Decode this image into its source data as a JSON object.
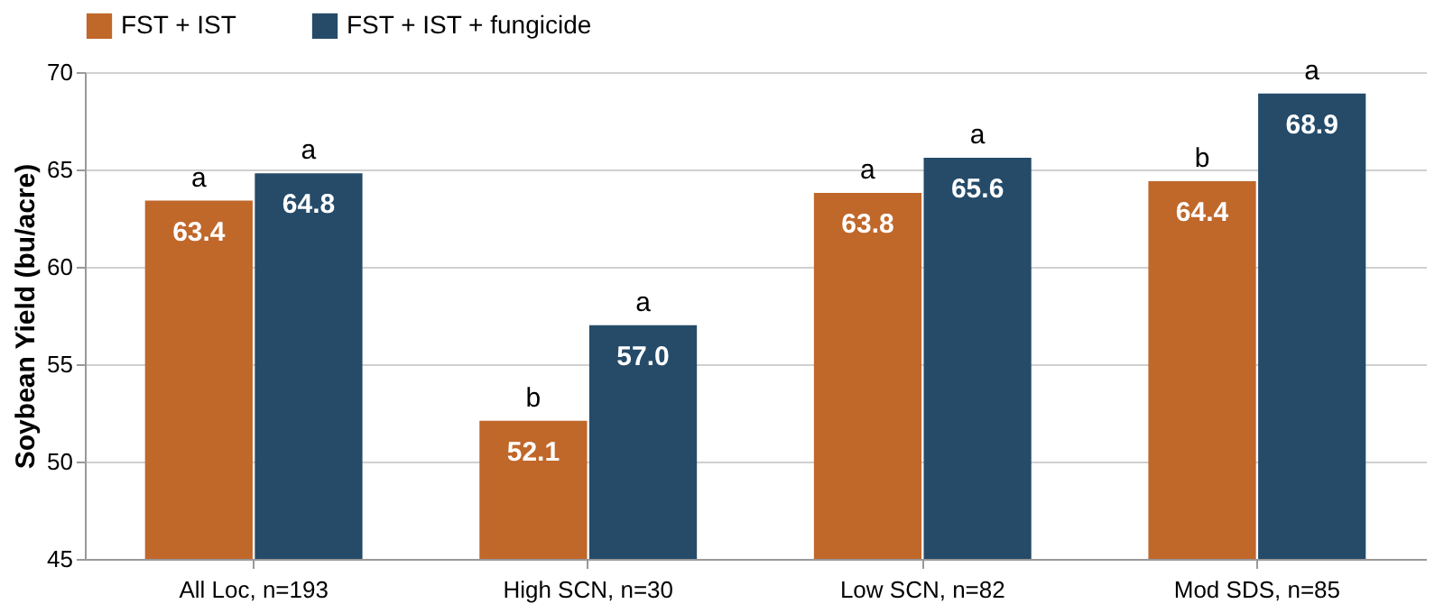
{
  "chart_data": {
    "type": "bar",
    "ylabel": "Soybean Yield (bu/acre)",
    "categories": [
      "All Loc, n=193",
      "High SCN, n=30",
      "Low SCN, n=82",
      "Mod SDS, n=85"
    ],
    "series": [
      {
        "name": "FST + IST",
        "color": "#c0672a",
        "values": [
          63.4,
          52.1,
          63.8,
          64.4
        ],
        "value_labels": [
          "63.4",
          "52.1",
          "63.8",
          "64.4"
        ]
      },
      {
        "name": "FST + IST + fungicide",
        "color": "#254b69",
        "values": [
          64.8,
          57.0,
          65.6,
          68.9
        ],
        "value_labels": [
          "64.8",
          "57.0",
          "65.6",
          "68.9"
        ]
      }
    ],
    "ylim": [
      45,
      70
    ],
    "yticks": [
      45,
      50,
      55,
      60,
      65,
      70
    ],
    "grid": "y",
    "legend": "top",
    "annotations": [
      {
        "text": "a",
        "x": "All Loc, n=193",
        "y": 63.4
      },
      {
        "text": "a",
        "x": "All Loc, n=193",
        "y": 64.8
      },
      {
        "text": "b",
        "x": "High SCN, n=30",
        "y": 52.1
      },
      {
        "text": "a",
        "x": "High SCN, n=30",
        "y": 57.0
      },
      {
        "text": "a",
        "x": "Low SCN, n=82",
        "y": 63.8
      },
      {
        "text": "a",
        "x": "Low SCN, n=82",
        "y": 65.6
      },
      {
        "text": "b",
        "x": "Mod SDS, n=85",
        "y": 64.4
      },
      {
        "text": "a",
        "x": "Mod SDS, n=85",
        "y": 68.9
      }
    ]
  }
}
